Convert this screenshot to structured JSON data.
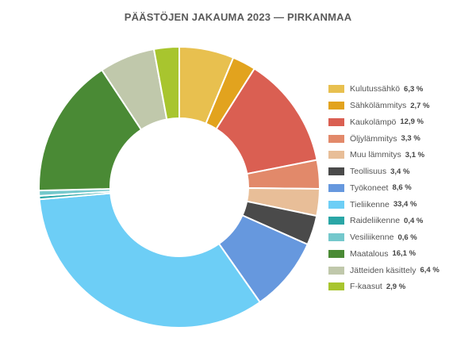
{
  "chart_data": {
    "type": "pie",
    "title": "PÄÄSTÖJEN JAKAUMA 2023 — PIRKANMAA",
    "donut": true,
    "legend_position": "right",
    "categories": [
      "Kulutussähkö",
      "Sähkölämmitys",
      "Kaukolämpö",
      "Öljylämmitys",
      "Muu lämmitys",
      "Teollisuus",
      "Työkoneet",
      "Tieliikenne",
      "Raideliikenne",
      "Vesiliikenne",
      "Maatalous",
      "Jätteiden käsittely",
      "F-kaasut"
    ],
    "values": [
      6.3,
      2.7,
      12.9,
      3.3,
      3.1,
      3.4,
      8.6,
      33.4,
      0.4,
      0.6,
      16.1,
      6.4,
      2.9
    ],
    "value_labels": [
      "6,3 %",
      "2,7 %",
      "12,9 %",
      "3,3 %",
      "3,1 %",
      "3,4 %",
      "8,6 %",
      "33,4 %",
      "0,4 %",
      "0,6 %",
      "16,1 %",
      "6,4 %",
      "2,9 %"
    ],
    "colors": [
      "#E8C04F",
      "#E2A31E",
      "#DA5F52",
      "#E2896A",
      "#E8BE98",
      "#4A4A4A",
      "#6698DE",
      "#6DCEF6",
      "#2AA6A6",
      "#74C8CC",
      "#4A8A35",
      "#C0C8AB",
      "#A8C52E"
    ],
    "unit": "%"
  }
}
